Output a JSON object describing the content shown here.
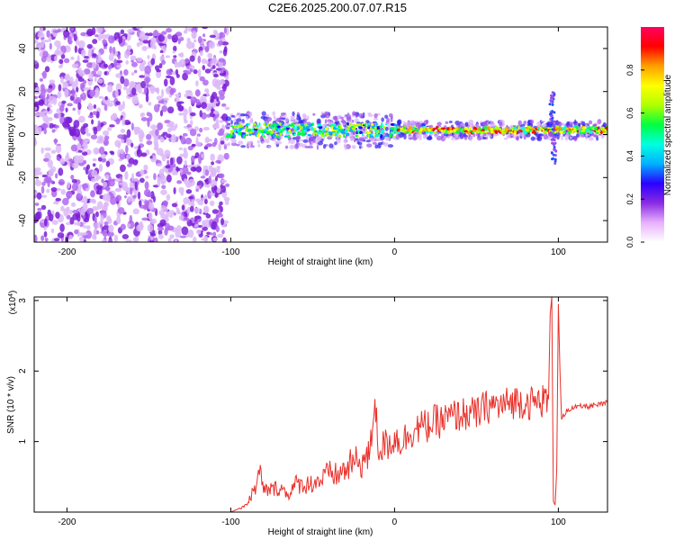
{
  "title": "C2E6.2025.200.07.07.R15",
  "chart_data": [
    {
      "type": "heatmap",
      "xlabel": "Height of straight line (km)",
      "ylabel": "Frequency (Hz)",
      "xlim": [
        -220,
        130
      ],
      "ylim": [
        -50,
        50
      ],
      "xticks": [
        -200,
        -100,
        0,
        100
      ],
      "yticks": [
        -40,
        -20,
        0,
        20,
        40
      ],
      "colorbar": {
        "label": "Normalized spectral amplitude",
        "range": [
          0,
          1
        ],
        "ticks": [
          "0.0",
          "0.2",
          "0.4",
          "0.6",
          "0.8"
        ],
        "stops": [
          "#ffffff",
          "#e8b0ff",
          "#8a2be2",
          "#2a00ff",
          "#00b0ff",
          "#00ffe0",
          "#00ff40",
          "#b0ff00",
          "#ffff00",
          "#ffa000",
          "#ff0000",
          "#ff0060"
        ]
      },
      "features": {
        "noise_region_x": [
          -220,
          -102
        ],
        "signal_band_x": [
          -102,
          130
        ],
        "signal_center_freq": 2,
        "strong_band_from_x": 0,
        "spike_x": 97,
        "spike_freq_range": [
          -14,
          20
        ]
      }
    },
    {
      "type": "line",
      "xlabel": "Height of straight line (km)",
      "ylabel": "SNR (10 * v/v)",
      "y_scale_label": "(x10",
      "y_scale_exp": "4",
      "xlim": [
        -220,
        130
      ],
      "ylim": [
        0,
        3.05
      ],
      "xticks": [
        -200,
        -100,
        0,
        100
      ],
      "yticks": [
        1,
        2,
        3
      ],
      "color": "#e8302a",
      "series": [
        {
          "x": [
            -220,
            -100,
            -95,
            -90,
            -85,
            -82,
            -80,
            -75,
            -70,
            -65,
            -60,
            -55,
            -50,
            -45,
            -40,
            -35,
            -30,
            -25,
            -20,
            -15,
            -12,
            -10,
            -5,
            0,
            5,
            10,
            15,
            20,
            25,
            30,
            35,
            40,
            45,
            50,
            55,
            60,
            65,
            70,
            75,
            80,
            85,
            90,
            94,
            95,
            96,
            97,
            98,
            99,
            100,
            101,
            102,
            105,
            110,
            115,
            120,
            125,
            130
          ],
          "y": [
            0.0,
            0.0,
            0.05,
            0.12,
            0.35,
            0.55,
            0.3,
            0.32,
            0.35,
            0.25,
            0.4,
            0.38,
            0.42,
            0.45,
            0.55,
            0.52,
            0.6,
            0.7,
            0.72,
            0.8,
            1.65,
            0.9,
            0.95,
            1.05,
            1.0,
            1.15,
            1.2,
            1.22,
            1.28,
            1.3,
            1.35,
            1.38,
            1.4,
            1.38,
            1.48,
            1.52,
            1.5,
            1.55,
            1.58,
            1.56,
            1.54,
            1.58,
            1.6,
            2.8,
            3.05,
            0.15,
            0.1,
            0.6,
            2.95,
            2.0,
            1.3,
            1.45,
            1.48,
            1.5,
            1.5,
            1.52,
            1.55
          ]
        }
      ]
    }
  ]
}
